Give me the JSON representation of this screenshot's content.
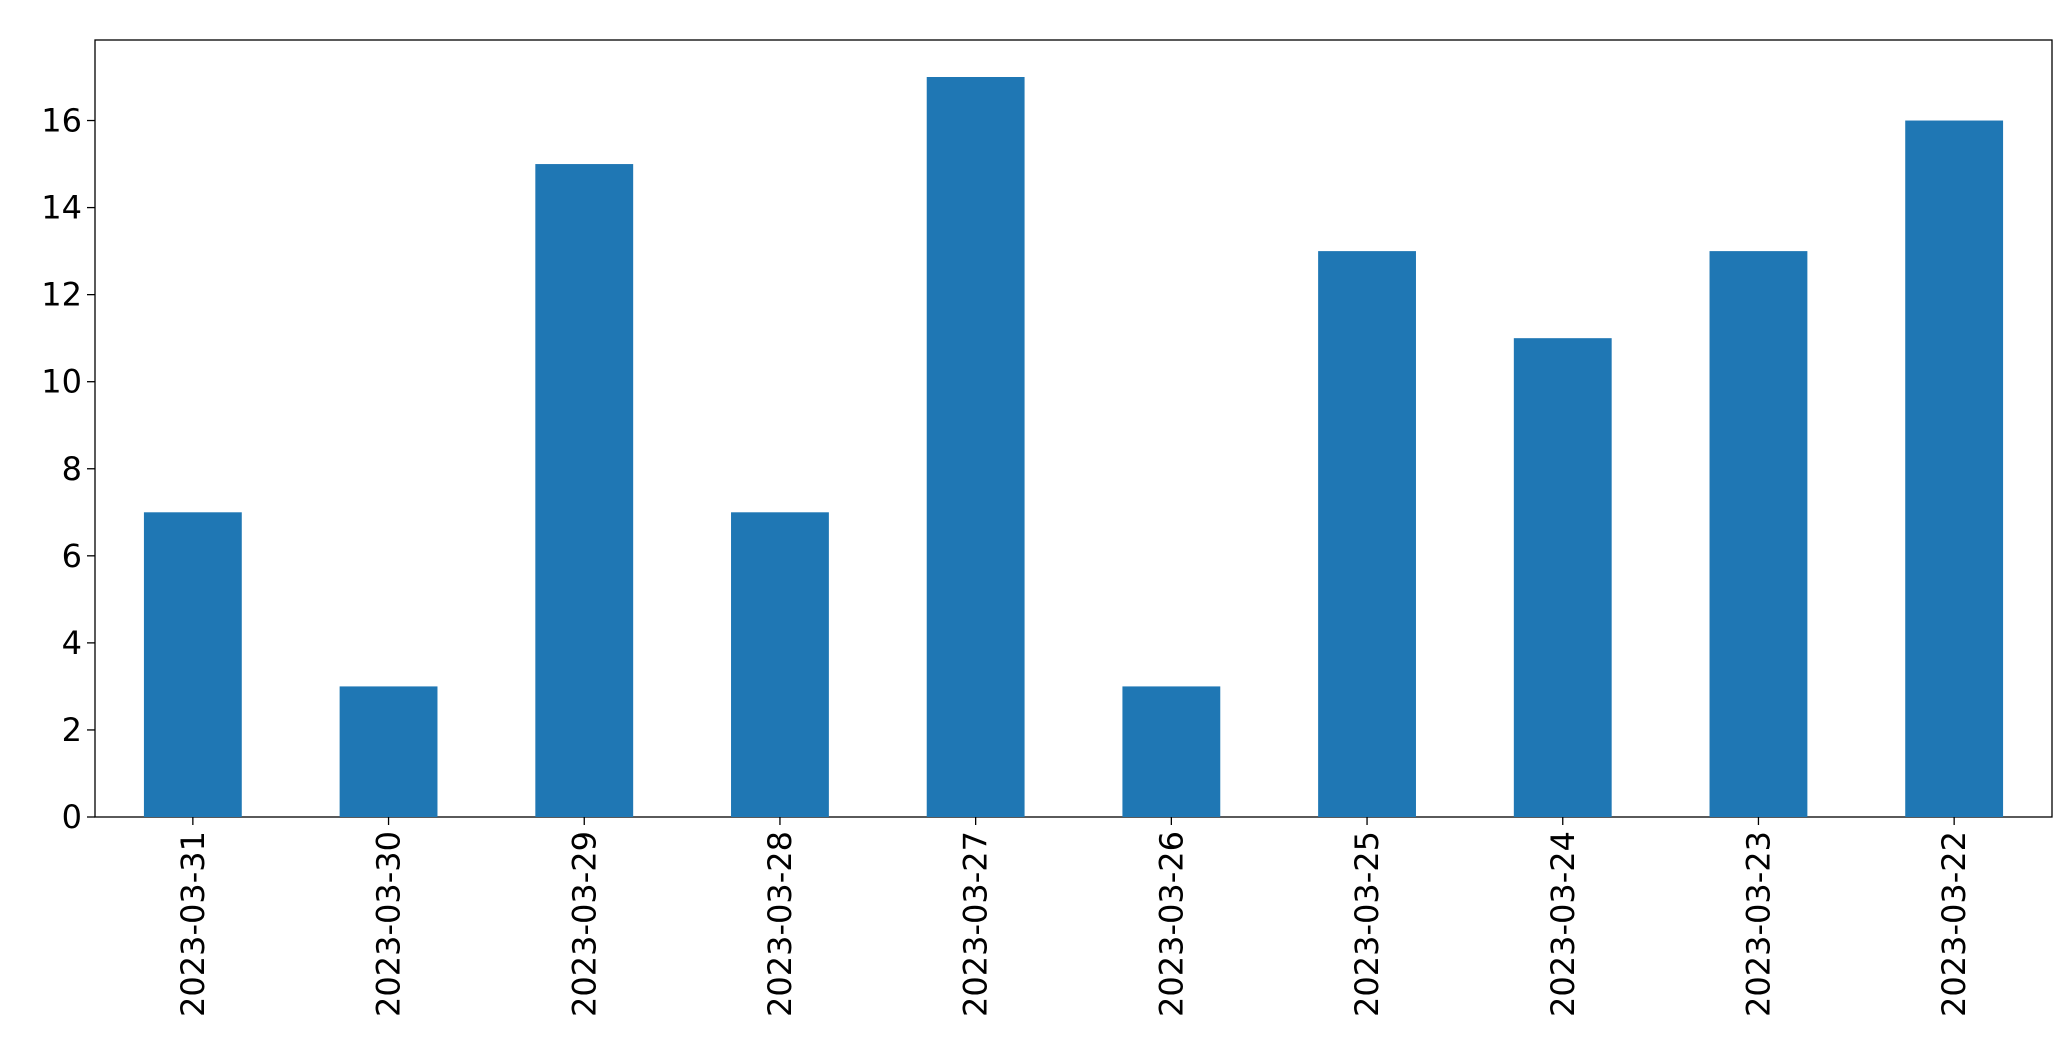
{
  "chart_data": {
    "type": "bar",
    "categories": [
      "2023-03-31",
      "2023-03-30",
      "2023-03-29",
      "2023-03-28",
      "2023-03-27",
      "2023-03-26",
      "2023-03-25",
      "2023-03-24",
      "2023-03-23",
      "2023-03-22"
    ],
    "values": [
      7,
      3,
      15,
      7,
      17,
      3,
      13,
      11,
      13,
      16
    ],
    "color": "#1f77b4",
    "ylim": [
      0,
      17.85
    ],
    "yticks": [
      0,
      2,
      4,
      6,
      8,
      10,
      12,
      14,
      16
    ],
    "grid": false
  }
}
